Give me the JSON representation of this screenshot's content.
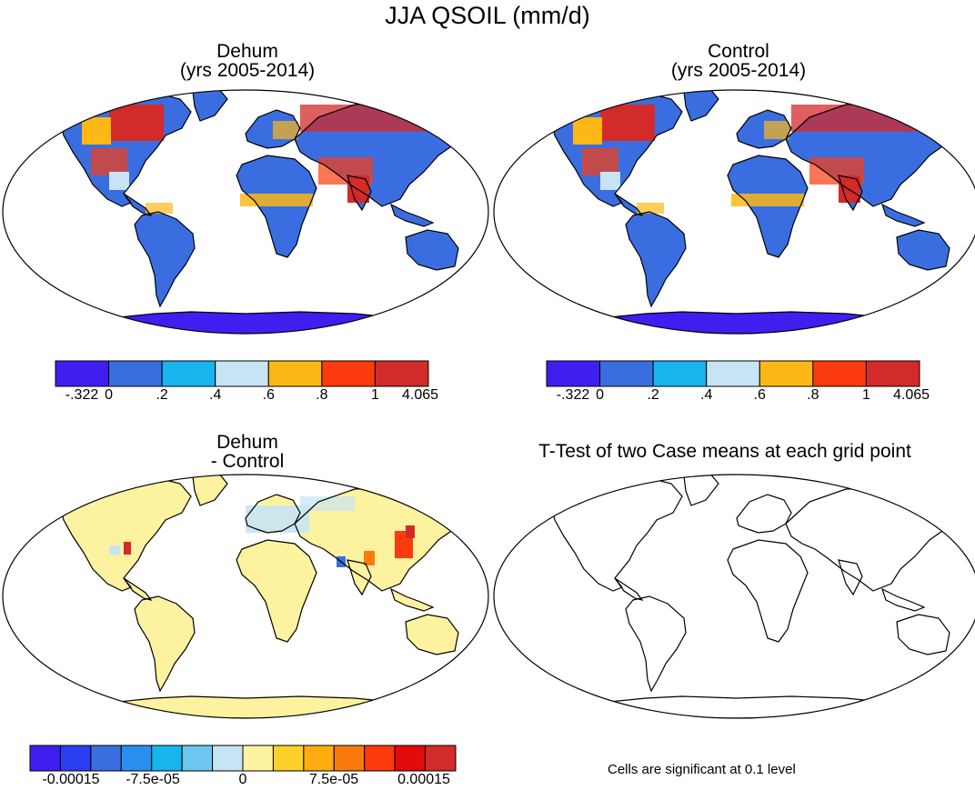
{
  "figure_title": "JJA QSOIL (mm/d)",
  "panels": [
    {
      "id": "dehum",
      "title_line1": "Dehum",
      "title_line2": "(yrs 2005-2014)"
    },
    {
      "id": "control",
      "title_line1": "Control",
      "title_line2": "(yrs 2005-2014)"
    },
    {
      "id": "diff",
      "title_line1": "Dehum",
      "title_line2": "- Control"
    },
    {
      "id": "ttest",
      "title_line1": "T-Test of two Case means at each grid point",
      "title_line2": ""
    }
  ],
  "colorbars": {
    "main": {
      "colors": [
        "#3f1ef0",
        "#3a6ee0",
        "#18b4ee",
        "#c6e4f4",
        "#fdb817",
        "#fb3a0e",
        "#d32a2a"
      ],
      "labels": [
        "-.322",
        "0",
        ".2",
        ".4",
        ".6",
        ".8",
        "1",
        "4.065"
      ]
    },
    "diff": {
      "colors": [
        "#3f1ef0",
        "#2a3df0",
        "#3a6ee0",
        "#2a8ef0",
        "#18b4ee",
        "#6cc6ee",
        "#c6e4f4",
        "#fdf2a0",
        "#fdd02a",
        "#fdac12",
        "#fb7a0e",
        "#fb3a0e",
        "#e20a0a",
        "#d32a2a"
      ],
      "labels": [
        "-0.00015",
        "-7.5e-05",
        "0",
        "7.5e-05",
        "0.00015"
      ]
    }
  },
  "note": "Cells are significant at 0.1 level"
}
